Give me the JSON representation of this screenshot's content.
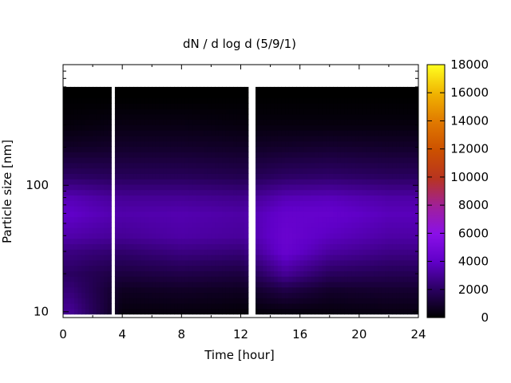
{
  "chart_data": {
    "type": "heatmap",
    "title": "dN / d log d (5/9/1)",
    "xlabel": "Time [hour]",
    "ylabel": "Particle size [nm]",
    "x_range": [
      0,
      24
    ],
    "x_ticks": [
      0,
      4,
      8,
      12,
      16,
      20,
      24
    ],
    "y_scale": "log",
    "y_range": [
      9,
      900
    ],
    "y_ticks": [
      10,
      100
    ],
    "colorbar": {
      "range": [
        0,
        18000
      ],
      "ticks": [
        0,
        2000,
        4000,
        6000,
        8000,
        10000,
        12000,
        14000,
        16000,
        18000
      ],
      "palette": "gnuplot (black-purple-red-orange-yellow)"
    },
    "gaps_hours": [
      [
        3.2,
        3.4
      ],
      [
        12.5,
        12.9
      ]
    ],
    "size_bins_nm": [
      10,
      15,
      20,
      30,
      40,
      60,
      80,
      120,
      200,
      300,
      500
    ],
    "size_distribution_profiles": [
      {
        "x": 0.5,
        "values": [
          3000,
          2400,
          2000,
          2600,
          3400,
          4000,
          3600,
          2000,
          800,
          250,
          0
        ]
      },
      {
        "x": 4,
        "values": [
          300,
          700,
          1300,
          2200,
          3000,
          3400,
          3000,
          1800,
          900,
          400,
          0
        ]
      },
      {
        "x": 8,
        "values": [
          300,
          800,
          1500,
          2600,
          3300,
          3500,
          3000,
          1800,
          900,
          400,
          0
        ]
      },
      {
        "x": 12,
        "values": [
          200,
          700,
          1300,
          2400,
          3100,
          3300,
          2800,
          1600,
          800,
          300,
          0
        ]
      },
      {
        "x": 15,
        "values": [
          300,
          1500,
          3000,
          4300,
          4400,
          4200,
          3600,
          2000,
          900,
          300,
          0
        ]
      },
      {
        "x": 18,
        "values": [
          300,
          900,
          1900,
          3200,
          3800,
          4200,
          3700,
          2100,
          1000,
          300,
          0
        ]
      },
      {
        "x": 22,
        "values": [
          400,
          1000,
          1700,
          2700,
          3300,
          3700,
          3300,
          1900,
          900,
          300,
          0
        ]
      }
    ]
  }
}
